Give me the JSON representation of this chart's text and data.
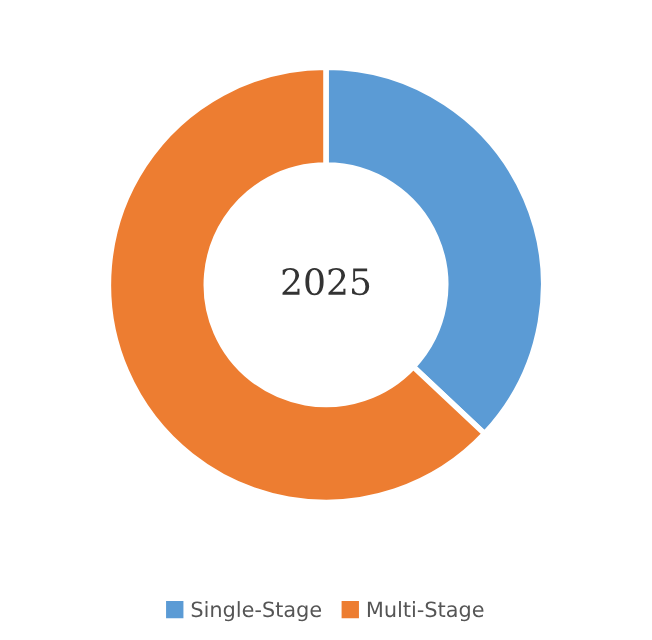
{
  "chart_data": {
    "type": "donut",
    "categories": [
      "Single-Stage",
      "Multi-Stage"
    ],
    "values": [
      37,
      63
    ],
    "colors": [
      "#5b9bd5",
      "#ed7d31"
    ],
    "annotations": [
      "2025"
    ],
    "legend": "bottom"
  }
}
